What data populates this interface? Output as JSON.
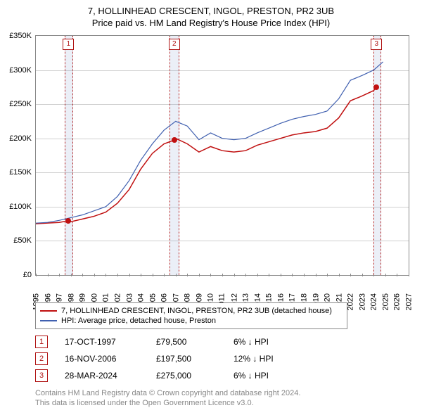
{
  "title": "7, HOLLINHEAD CRESCENT, INGOL, PRESTON, PR2 3UB",
  "subtitle": "Price paid vs. HM Land Registry's House Price Index (HPI)",
  "chart": {
    "type": "line",
    "background_color": "#ffffff",
    "grid_color": "#d0d0d0",
    "border_color": "#888888",
    "xlim": [
      1995,
      2027
    ],
    "ylim": [
      0,
      350000
    ],
    "ytick_step": 50000,
    "ytick_labels": [
      "£0",
      "£50K",
      "£100K",
      "£150K",
      "£200K",
      "£250K",
      "£300K",
      "£350K"
    ],
    "xtick_labels": [
      "1995",
      "1996",
      "1997",
      "1998",
      "1999",
      "2000",
      "2001",
      "2002",
      "2003",
      "2004",
      "2005",
      "2006",
      "2007",
      "2008",
      "2009",
      "2010",
      "2011",
      "2012",
      "2013",
      "2014",
      "2015",
      "2016",
      "2017",
      "2018",
      "2019",
      "2020",
      "2021",
      "2022",
      "2023",
      "2024",
      "2025",
      "2026",
      "2027"
    ],
    "x_label_fontsize": 11,
    "y_label_fontsize": 11,
    "series": [
      {
        "name": "price_paid",
        "color": "#c01010",
        "width": 1.5,
        "points": [
          [
            1995,
            75000
          ],
          [
            1996,
            76000
          ],
          [
            1997,
            77000
          ],
          [
            1997.8,
            79500
          ],
          [
            1998,
            78000
          ],
          [
            1999,
            82000
          ],
          [
            2000,
            86000
          ],
          [
            2001,
            92000
          ],
          [
            2002,
            105000
          ],
          [
            2003,
            125000
          ],
          [
            2004,
            155000
          ],
          [
            2005,
            178000
          ],
          [
            2006,
            192000
          ],
          [
            2006.88,
            197500
          ],
          [
            2007,
            200000
          ],
          [
            2008,
            192000
          ],
          [
            2009,
            180000
          ],
          [
            2010,
            188000
          ],
          [
            2011,
            182000
          ],
          [
            2012,
            180000
          ],
          [
            2013,
            182000
          ],
          [
            2014,
            190000
          ],
          [
            2015,
            195000
          ],
          [
            2016,
            200000
          ],
          [
            2017,
            205000
          ],
          [
            2018,
            208000
          ],
          [
            2019,
            210000
          ],
          [
            2020,
            215000
          ],
          [
            2021,
            230000
          ],
          [
            2022,
            255000
          ],
          [
            2023,
            262000
          ],
          [
            2024,
            270000
          ],
          [
            2024.24,
            275000
          ]
        ]
      },
      {
        "name": "hpi",
        "color": "#4060b0",
        "width": 1.2,
        "points": [
          [
            1995,
            76000
          ],
          [
            1996,
            77000
          ],
          [
            1997,
            80000
          ],
          [
            1998,
            84000
          ],
          [
            1999,
            88000
          ],
          [
            2000,
            94000
          ],
          [
            2001,
            100000
          ],
          [
            2002,
            115000
          ],
          [
            2003,
            138000
          ],
          [
            2004,
            168000
          ],
          [
            2005,
            192000
          ],
          [
            2006,
            212000
          ],
          [
            2007,
            225000
          ],
          [
            2008,
            218000
          ],
          [
            2009,
            198000
          ],
          [
            2010,
            208000
          ],
          [
            2011,
            200000
          ],
          [
            2012,
            198000
          ],
          [
            2013,
            200000
          ],
          [
            2014,
            208000
          ],
          [
            2015,
            215000
          ],
          [
            2016,
            222000
          ],
          [
            2017,
            228000
          ],
          [
            2018,
            232000
          ],
          [
            2019,
            235000
          ],
          [
            2020,
            240000
          ],
          [
            2021,
            258000
          ],
          [
            2022,
            285000
          ],
          [
            2023,
            292000
          ],
          [
            2024,
            300000
          ],
          [
            2024.8,
            312000
          ]
        ]
      }
    ],
    "shaded_regions": [
      {
        "start": 1997.5,
        "end": 1998.1
      },
      {
        "start": 2006.5,
        "end": 2007.2
      },
      {
        "start": 2024.0,
        "end": 2024.5
      }
    ],
    "markers": [
      {
        "label": "1",
        "x": 1997.8,
        "price": 79500
      },
      {
        "label": "2",
        "x": 2006.88,
        "price": 197500
      },
      {
        "label": "3",
        "x": 2024.24,
        "price": 275000
      }
    ]
  },
  "legend": {
    "items": [
      {
        "color": "#c01010",
        "label": "7, HOLLINHEAD CRESCENT, INGOL, PRESTON, PR2 3UB (detached house)"
      },
      {
        "color": "#4060b0",
        "label": "HPI: Average price, detached house, Preston"
      }
    ]
  },
  "transactions": [
    {
      "num": "1",
      "date": "17-OCT-1997",
      "price": "£79,500",
      "pct": "6% ↓ HPI"
    },
    {
      "num": "2",
      "date": "16-NOV-2006",
      "price": "£197,500",
      "pct": "12% ↓ HPI"
    },
    {
      "num": "3",
      "date": "28-MAR-2024",
      "price": "£275,000",
      "pct": "6% ↓ HPI"
    }
  ],
  "footer": {
    "line1": "Contains HM Land Registry data © Crown copyright and database right 2024.",
    "line2": "This data is licensed under the Open Government Licence v3.0."
  }
}
